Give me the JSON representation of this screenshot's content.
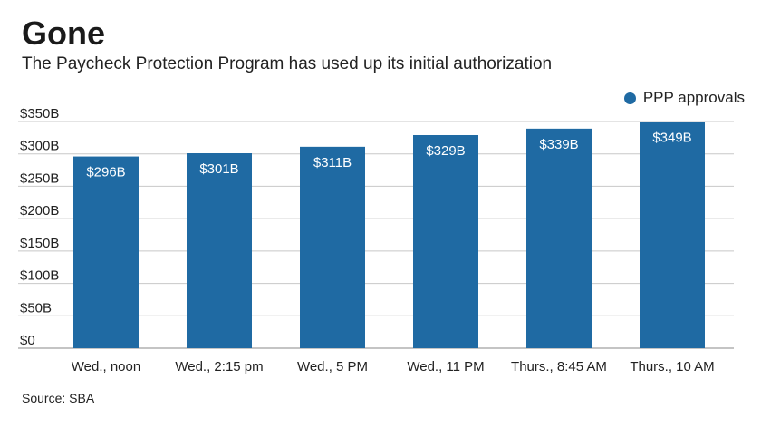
{
  "header": {
    "title": "Gone",
    "subtitle": "The Paycheck Protection Program has used up its initial authorization"
  },
  "footer": {
    "source": "Source: SBA"
  },
  "colors": {
    "bar": "#1f6aa3",
    "grid": "#c8c8c8",
    "axis": "#888888",
    "text": "#222222"
  },
  "chart_data": {
    "type": "bar",
    "categories": [
      "Wed., noon",
      "Wed., 2:15 pm",
      "Wed., 5 PM",
      "Wed., 11 PM",
      "Thurs., 8:45 AM",
      "Thurs., 10 AM"
    ],
    "series": [
      {
        "name": "PPP approvals",
        "values": [
          296,
          301,
          311,
          329,
          339,
          349
        ],
        "data_labels": [
          "$296B",
          "$301B",
          "$311B",
          "$329B",
          "$339B",
          "$349B"
        ]
      }
    ],
    "yticks": [
      {
        "value": 0,
        "label": "$0"
      },
      {
        "value": 50,
        "label": "$50B"
      },
      {
        "value": 100,
        "label": "$100B"
      },
      {
        "value": 150,
        "label": "$150B"
      },
      {
        "value": 200,
        "label": "$200B"
      },
      {
        "value": 250,
        "label": "$250B"
      },
      {
        "value": 300,
        "label": "$300B"
      },
      {
        "value": 350,
        "label": "$350B"
      }
    ],
    "ylim": [
      0,
      350
    ],
    "grid": true,
    "legend_position": "top-right"
  }
}
